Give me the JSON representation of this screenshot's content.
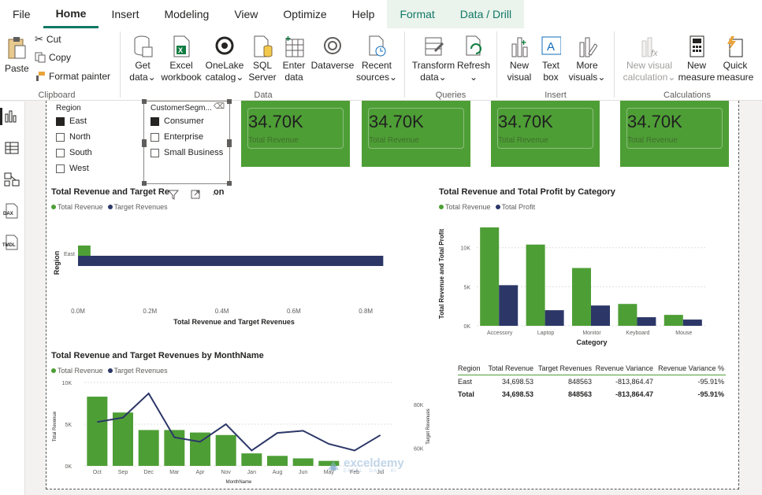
{
  "menu": {
    "tabs": [
      "File",
      "Home",
      "Insert",
      "Modeling",
      "View",
      "Optimize",
      "Help",
      "Format",
      "Data / Drill"
    ]
  },
  "ribbon": {
    "clipboard": {
      "paste": "Paste",
      "cut": "Cut",
      "copy": "Copy",
      "format_painter": "Format painter",
      "label": "Clipboard"
    },
    "data": {
      "get_data": [
        "Get",
        "data"
      ],
      "excel": [
        "Excel",
        "workbook"
      ],
      "onelake": [
        "OneLake",
        "catalog"
      ],
      "sql": [
        "SQL",
        "Server"
      ],
      "enter": [
        "Enter",
        "data"
      ],
      "dataverse": "Dataverse",
      "recent": [
        "Recent",
        "sources"
      ],
      "label": "Data"
    },
    "queries": {
      "transform": [
        "Transform",
        "data"
      ],
      "refresh": "Refresh",
      "label": "Queries"
    },
    "insert": {
      "new_visual": [
        "New",
        "visual"
      ],
      "text_box": [
        "Text",
        "box"
      ],
      "more_visuals": [
        "More",
        "visuals"
      ],
      "label": "Insert"
    },
    "calculations": {
      "new_visual_calc": [
        "New visual",
        "calculation"
      ],
      "new_measure": [
        "New",
        "measure"
      ],
      "quick_measure": [
        "Quick",
        "measure"
      ],
      "label": "Calculations"
    }
  },
  "leftbar": {
    "dax": "DAX",
    "tmdl": "TMDL"
  },
  "slicers": {
    "region": {
      "title": "Region",
      "items": [
        {
          "label": "East",
          "checked": true
        },
        {
          "label": "North",
          "checked": false
        },
        {
          "label": "South",
          "checked": false
        },
        {
          "label": "West",
          "checked": false
        }
      ]
    },
    "segment": {
      "title": "CustomerSegm...",
      "items": [
        {
          "label": "Consumer",
          "checked": true
        },
        {
          "label": "Enterprise",
          "checked": false
        },
        {
          "label": "Small Business",
          "checked": false
        }
      ]
    }
  },
  "cards": [
    {
      "value": "34.70K",
      "label": "Total Revenue"
    },
    {
      "value": "34.70K",
      "label": "Total Revenue"
    },
    {
      "value": "34.70K",
      "label": "Total Revenue"
    },
    {
      "value": "34.70K",
      "label": "Total Revenue"
    }
  ],
  "colors": {
    "green": "#4e9e36",
    "navy": "#2c3768"
  },
  "chart_data": [
    {
      "type": "bar",
      "title": "Total Revenue and Target Re",
      "title_trailing": "on",
      "orientation": "horizontal",
      "categories": [
        "East"
      ],
      "series": [
        {
          "name": "Total Revenue",
          "values": [
            34698.53
          ]
        },
        {
          "name": "Target Revenues",
          "values": [
            848563
          ]
        }
      ],
      "xlabel": "Total Revenue and Target Revenues",
      "ylabel": "Region",
      "xticks": [
        "0.0M",
        "0.2M",
        "0.4M",
        "0.6M",
        "0.8M"
      ],
      "xlim": [
        0,
        850000
      ],
      "legend": "top-left"
    },
    {
      "type": "bar",
      "title": "Total Revenue and Total Profit by Category",
      "categories": [
        "Accessory",
        "Laptop",
        "Monitor",
        "Keyboard",
        "Mouse"
      ],
      "series": [
        {
          "name": "Total Revenue",
          "values": [
            12600,
            10400,
            7400,
            2800,
            1400
          ]
        },
        {
          "name": "Total Profit",
          "values": [
            5200,
            2000,
            2600,
            1100,
            800
          ]
        }
      ],
      "xlabel": "Category",
      "ylabel": "Total Revenue and Total Profit",
      "yticks": [
        "0K",
        "5K",
        "10K"
      ],
      "ylim": [
        0,
        13500
      ],
      "legend": "top-left"
    },
    {
      "type": "bar",
      "title": "Total Revenue and Target Revenues by MonthName",
      "categories": [
        "Oct",
        "Sep",
        "Dec",
        "Mar",
        "Apr",
        "Nov",
        "Jan",
        "Aug",
        "Jun",
        "May",
        "Feb",
        "Jul"
      ],
      "series": [
        {
          "name": "Total Revenue",
          "values": [
            8300,
            6400,
            4300,
            4300,
            4000,
            3700,
            1500,
            1200,
            900,
            600,
            0,
            0
          ]
        },
        {
          "name": "Target Revenues",
          "values": [
            72000,
            74000,
            85000,
            65000,
            63000,
            71000,
            59000,
            67000,
            68000,
            62000,
            59000,
            66000
          ]
        }
      ],
      "xlabel": "MonthName",
      "ylabel": "Total Revenue",
      "y2label": "Target Revenues",
      "yticks": [
        "0K",
        "5K",
        "10K"
      ],
      "y2ticks": [
        "60K",
        "80K"
      ],
      "ylim": [
        0,
        10000
      ],
      "y2lim": [
        52000,
        90000
      ],
      "legend": "top-left"
    },
    {
      "type": "table",
      "columns": [
        "Region",
        "Total Revenue",
        "Target Revenues",
        "Revenue Variance",
        "Revenue Variance %"
      ],
      "rows": [
        [
          "East",
          "34,698.53",
          "848563",
          "-813,864.47",
          "-95.91%"
        ]
      ],
      "total": [
        "Total",
        "34,698.53",
        "848563",
        "-813,864.47",
        "-95.91%"
      ]
    }
  ],
  "watermark": {
    "brand": "exceldemy",
    "tagline": "EXCEL · DATA · BI"
  }
}
